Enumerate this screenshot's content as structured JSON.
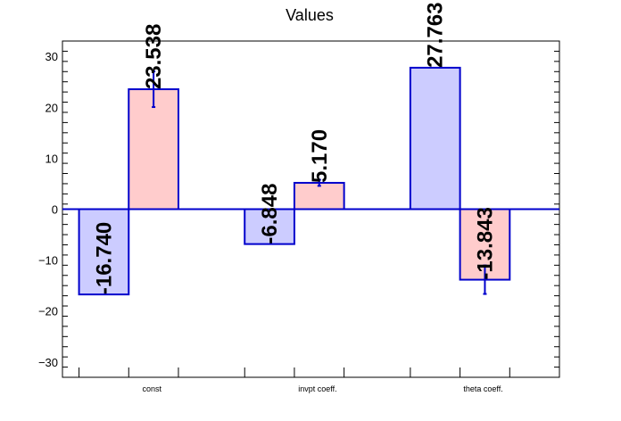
{
  "chart_data": {
    "type": "bar",
    "title": "Values",
    "xlabel": "",
    "ylabel": "",
    "ylim": [
      -33,
      33
    ],
    "yticks": [
      -30,
      -20,
      -10,
      0,
      10,
      20,
      30
    ],
    "ytick_labels": [
      "−30",
      "−20",
      "−10",
      "0",
      "10",
      "20",
      "30"
    ],
    "categories": [
      "const",
      "invpt coeff.",
      "theta coeff."
    ],
    "series": [
      {
        "color": "#ccccff",
        "edge_color": "#0000cc",
        "values": [
          -16.74,
          -6.848,
          27.763
        ],
        "labels": [
          "-16.740",
          "-6.848",
          "27.763"
        ],
        "errors": [
          0,
          0,
          0
        ]
      },
      {
        "color": "#ffcccc",
        "edge_color": "#0000cc",
        "values": [
          23.538,
          5.17,
          -13.843
        ],
        "labels": [
          "23.538",
          "5.170",
          "-13.843"
        ],
        "errors": [
          3.5,
          0.6,
          2.8
        ]
      }
    ],
    "grid": false,
    "legend": "none"
  }
}
